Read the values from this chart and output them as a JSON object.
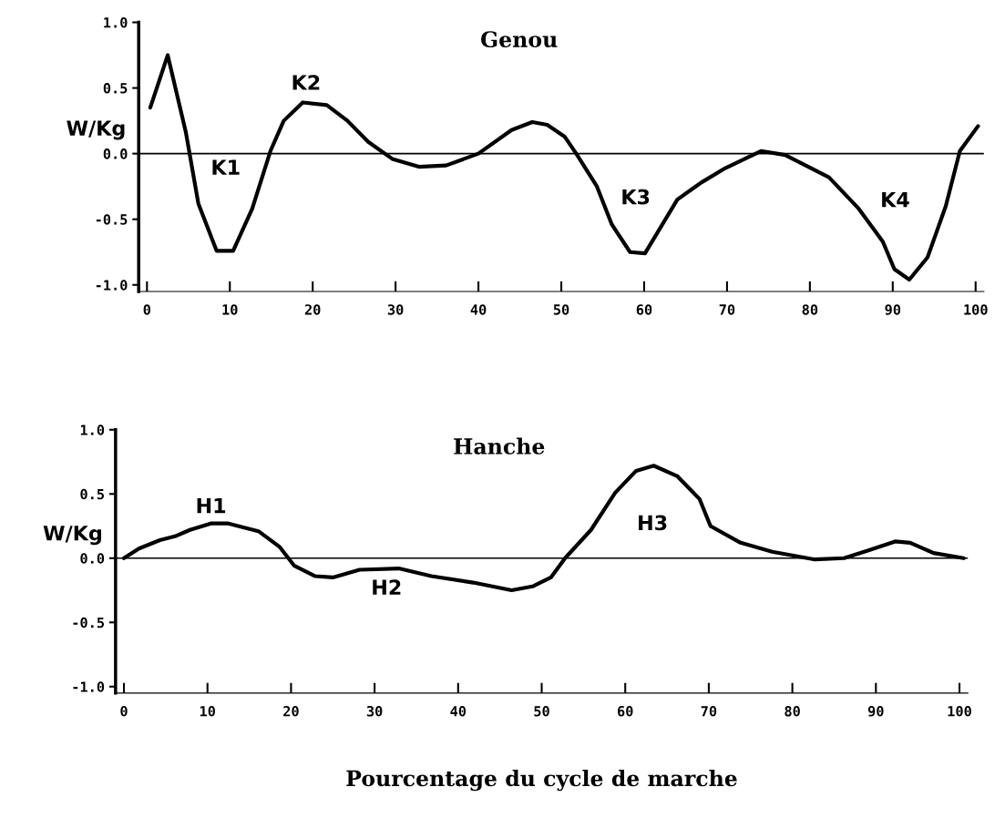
{
  "chart_data": [
    {
      "type": "line",
      "title": "Genou",
      "ylabel": "W/Kg",
      "series": [
        {
          "color": "#000000",
          "x": [
            0.4,
            2.5,
            4.7,
            6.2,
            8.4,
            10.4,
            12.7,
            14.9,
            16.5,
            18.8,
            21.7,
            24.2,
            26.7,
            29.6,
            32.8,
            36.1,
            40,
            44,
            46.5,
            48.3,
            50.4,
            51.8,
            54.3,
            56.1,
            58.3,
            60.1,
            64,
            66.9,
            69.8,
            74.1,
            77,
            82.3,
            85.9,
            88.8,
            90.2,
            92,
            94.2,
            96.4,
            98.1,
            100.3
          ],
          "values": [
            0.35,
            0.75,
            0.16,
            -0.38,
            -0.74,
            -0.74,
            -0.42,
            0.02,
            0.25,
            0.39,
            0.37,
            0.25,
            0.09,
            -0.04,
            -0.1,
            -0.09,
            0.0,
            0.18,
            0.24,
            0.22,
            0.13,
            0.0,
            -0.25,
            -0.54,
            -0.75,
            -0.76,
            -0.35,
            -0.22,
            -0.11,
            0.02,
            -0.01,
            -0.18,
            -0.42,
            -0.67,
            -0.88,
            -0.96,
            -0.79,
            -0.4,
            0.02,
            0.21
          ]
        }
      ],
      "xlim": [
        -1,
        101
      ],
      "xticks": [
        0,
        10,
        20,
        30,
        40,
        50,
        60,
        70,
        80,
        90,
        100
      ],
      "ylim": [
        -1.05,
        1.0
      ],
      "yticks": [
        {
          "value": -1.0,
          "label": "-1.0"
        },
        {
          "value": -0.5,
          "label": "-0.5"
        },
        {
          "value": 0.0,
          "label": "0.0"
        },
        {
          "value": 0.5,
          "label": "0.5"
        },
        {
          "value": 1.0,
          "label": "1.0"
        }
      ],
      "ref_lines": [
        {
          "axis": "y",
          "value": 0,
          "color": "#000000"
        }
      ],
      "annotations": [
        "K1",
        "K2",
        "K3",
        "K4"
      ],
      "grid": false,
      "legend": false
    },
    {
      "type": "line",
      "title": "Hanche",
      "ylabel": "W/Kg",
      "xlabel": "Pourcentage du cycle de marche",
      "series": [
        {
          "color": "#000000",
          "x": [
            0,
            1.8,
            4.3,
            6.1,
            7.9,
            10.4,
            12.5,
            16.1,
            18.6,
            20.4,
            22.9,
            25,
            28.2,
            32.9,
            36.8,
            41.8,
            46.4,
            48.9,
            51.1,
            52.8,
            55.9,
            58.8,
            61.3,
            63.4,
            66.2,
            68.9,
            70.2,
            73.8,
            77.6,
            82.7,
            86.2,
            89.1,
            92.3,
            94.1,
            96.9,
            100.5
          ],
          "values": [
            0,
            0.075,
            0.14,
            0.17,
            0.22,
            0.27,
            0.27,
            0.21,
            0.09,
            -0.06,
            -0.14,
            -0.15,
            -0.09,
            -0.08,
            -0.14,
            -0.19,
            -0.25,
            -0.22,
            -0.15,
            0.0,
            0.22,
            0.51,
            0.68,
            0.72,
            0.64,
            0.46,
            0.25,
            0.12,
            0.05,
            -0.01,
            0.0,
            0.06,
            0.13,
            0.12,
            0.04,
            0.0
          ]
        }
      ],
      "xlim": [
        -1,
        101
      ],
      "xticks": [
        0,
        10,
        20,
        30,
        40,
        50,
        60,
        70,
        80,
        90,
        100
      ],
      "ylim": [
        -1.05,
        1.0
      ],
      "yticks": [
        {
          "value": -1.0,
          "label": "-1.0"
        },
        {
          "value": -0.5,
          "label": "-0.5"
        },
        {
          "value": 0.0,
          "label": "0.0"
        },
        {
          "value": 0.5,
          "label": "0.5"
        },
        {
          "value": 1.0,
          "label": "1.0"
        }
      ],
      "ref_lines": [
        {
          "axis": "y",
          "value": 0,
          "color": "#000000"
        }
      ],
      "annotations": [
        "H1",
        "H2",
        "H3"
      ],
      "grid": false,
      "legend": false
    }
  ]
}
